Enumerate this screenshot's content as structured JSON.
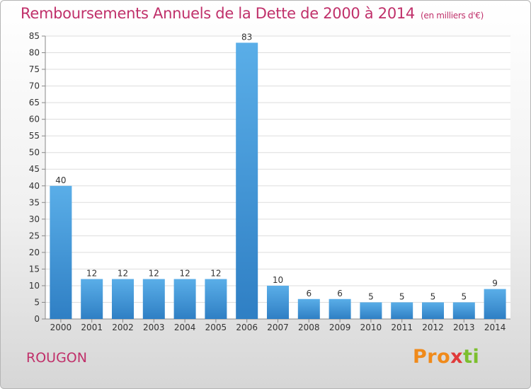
{
  "title": "Remboursements Annuels de la Dette de 2000 à 2014",
  "unit": "(en milliers d'€)",
  "place": "ROUGON",
  "logo": {
    "p": "Pro",
    "x": "x",
    "i": "i",
    "t": "ti"
  },
  "colors": {
    "bar_light": "#5aaee8",
    "bar_dark": "#2f7fc4",
    "title": "#c0306a"
  },
  "chart_data": {
    "type": "bar",
    "title": "Remboursements Annuels de la Dette de 2000 à 2014",
    "xlabel": "",
    "ylabel": "",
    "ylim": [
      0,
      85
    ],
    "yticks": [
      0,
      5,
      10,
      15,
      20,
      25,
      30,
      35,
      40,
      45,
      50,
      55,
      60,
      65,
      70,
      75,
      80,
      85
    ],
    "grid": true,
    "categories": [
      "2000",
      "2001",
      "2002",
      "2003",
      "2004",
      "2005",
      "2006",
      "2007",
      "2008",
      "2009",
      "2010",
      "2011",
      "2012",
      "2013",
      "2014"
    ],
    "values": [
      40,
      12,
      12,
      12,
      12,
      12,
      83,
      10,
      6,
      6,
      5,
      5,
      5,
      5,
      9
    ]
  }
}
